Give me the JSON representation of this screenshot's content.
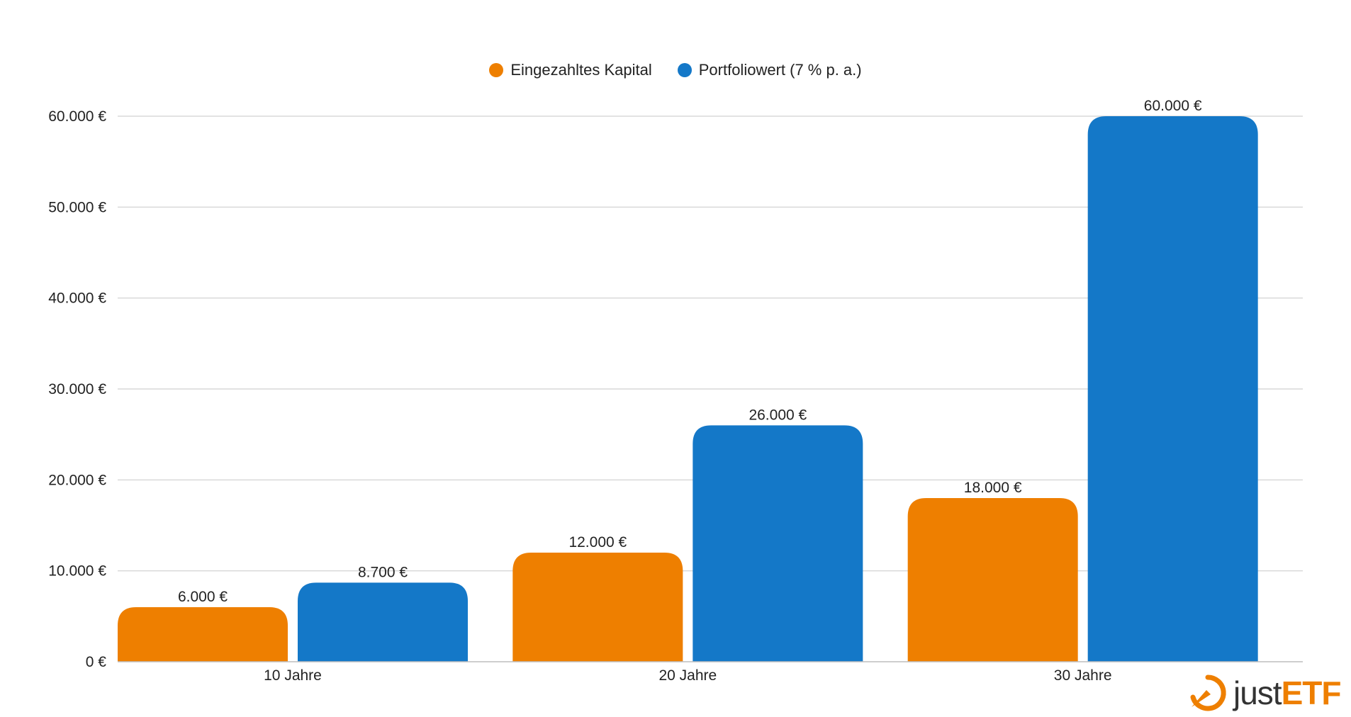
{
  "chart_data": {
    "type": "bar",
    "categories": [
      "10 Jahre",
      "20 Jahre",
      "30 Jahre"
    ],
    "series": [
      {
        "name": "Eingezahltes Kapital",
        "color": "#ee7f00",
        "values": [
          6000,
          12000,
          18000
        ],
        "labels": [
          "6.000 €",
          "12.000 €",
          "18.000 €"
        ]
      },
      {
        "name": "Portfoliowert (7 % p. a.)",
        "color": "#1478c8",
        "values": [
          8700,
          26000,
          60000
        ],
        "labels": [
          "8.700 €",
          "26.000 €",
          "60.000 €"
        ]
      }
    ],
    "ylim": [
      0,
      60000
    ],
    "yticks": [
      0,
      10000,
      20000,
      30000,
      40000,
      50000,
      60000
    ],
    "ytick_labels": [
      "0 €",
      "10.000 €",
      "20.000 €",
      "30.000 €",
      "40.000 €",
      "50.000 €",
      "60.000 €"
    ],
    "grid": true,
    "legend_position": "top-center",
    "xlabel": "",
    "ylabel": ""
  },
  "logo": {
    "text_just": "just",
    "text_etf": "ETF",
    "icon": "justetf-logo-icon",
    "brand_color": "#ee7f00"
  }
}
